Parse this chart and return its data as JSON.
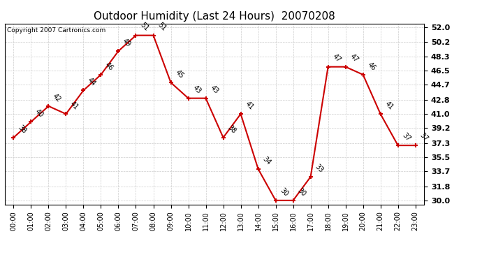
{
  "title": "Outdoor Humidity (Last 24 Hours)  20070208",
  "copyright": "Copyright 2007 Cartronics.com",
  "hours": [
    0,
    1,
    2,
    3,
    4,
    5,
    6,
    7,
    8,
    9,
    10,
    11,
    12,
    13,
    14,
    15,
    16,
    17,
    18,
    19,
    20,
    21,
    22,
    23
  ],
  "values": [
    38,
    40,
    42,
    41,
    44,
    46,
    49,
    51,
    51,
    45,
    43,
    43,
    38,
    41,
    34,
    30,
    30,
    33,
    47,
    47,
    46,
    41,
    37,
    37
  ],
  "xlabels": [
    "00:00",
    "01:00",
    "02:00",
    "03:00",
    "04:00",
    "05:00",
    "06:00",
    "07:00",
    "08:00",
    "09:00",
    "10:00",
    "11:00",
    "12:00",
    "13:00",
    "14:00",
    "15:00",
    "16:00",
    "17:00",
    "18:00",
    "19:00",
    "20:00",
    "21:00",
    "22:00",
    "23:00"
  ],
  "ylim": [
    29.5,
    52.5
  ],
  "yticks": [
    30.0,
    31.8,
    33.7,
    35.5,
    37.3,
    39.2,
    41.0,
    42.8,
    44.7,
    46.5,
    48.3,
    50.2,
    52.0
  ],
  "line_color": "#cc0000",
  "marker_color": "#cc0000",
  "bg_color": "#ffffff",
  "grid_color": "#cccccc",
  "title_fontsize": 11,
  "label_fontsize": 7,
  "annotation_fontsize": 7,
  "copyright_fontsize": 6.5
}
